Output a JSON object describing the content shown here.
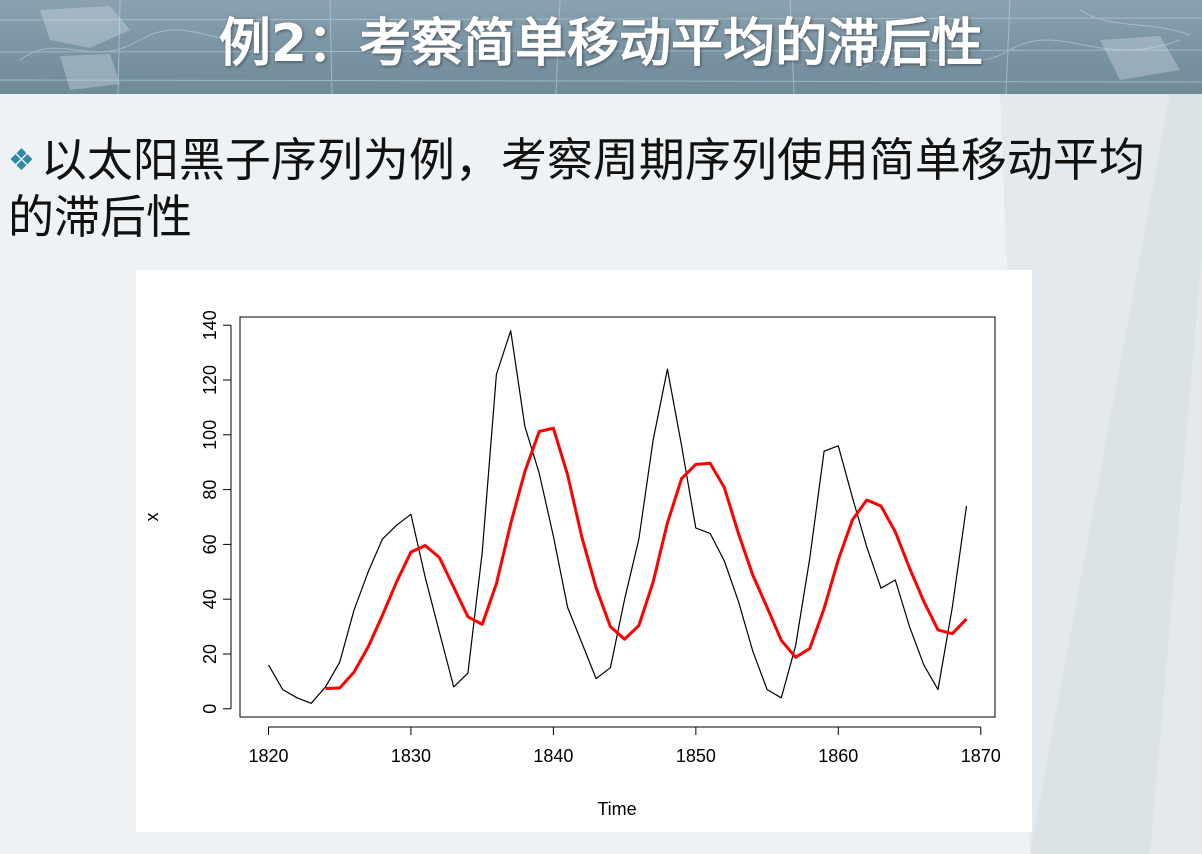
{
  "slide": {
    "title": "例2：考察简单移动平均的滞后性",
    "bullet_icon": "diamond-bullet-icon",
    "bullet_text": "以太阳黑子序列为例，考察周期序列使用简单移动平均的滞后性"
  },
  "colors": {
    "banner": "#7b95a4",
    "bullet_icon": "#2f8aa4",
    "raw_series": "#000000",
    "moving_average": "#ff0000"
  },
  "chart_data": {
    "type": "line",
    "title": "",
    "xlabel": "Time",
    "ylabel": "x",
    "xlim": [
      1818,
      1871
    ],
    "ylim": [
      -3,
      143
    ],
    "xticks": [
      1820,
      1830,
      1840,
      1850,
      1860,
      1870
    ],
    "yticks": [
      0,
      20,
      40,
      60,
      80,
      100,
      120,
      140
    ],
    "grid": false,
    "legend": "none",
    "series": [
      {
        "color": "#000000",
        "points": [
          [
            1820,
            16
          ],
          [
            1821,
            7
          ],
          [
            1822,
            4
          ],
          [
            1823,
            2
          ],
          [
            1824,
            8
          ],
          [
            1825,
            17
          ],
          [
            1826,
            36
          ],
          [
            1827,
            50
          ],
          [
            1828,
            62
          ],
          [
            1829,
            67
          ],
          [
            1830,
            71
          ],
          [
            1831,
            48
          ],
          [
            1832,
            28
          ],
          [
            1833,
            8
          ],
          [
            1834,
            13
          ],
          [
            1835,
            57
          ],
          [
            1836,
            122
          ],
          [
            1837,
            138
          ],
          [
            1838,
            103
          ],
          [
            1839,
            86
          ],
          [
            1840,
            63
          ],
          [
            1841,
            37
          ],
          [
            1842,
            24
          ],
          [
            1843,
            11
          ],
          [
            1844,
            15
          ],
          [
            1845,
            40
          ],
          [
            1846,
            62
          ],
          [
            1847,
            98
          ],
          [
            1848,
            124
          ],
          [
            1849,
            96
          ],
          [
            1850,
            66
          ],
          [
            1851,
            64
          ],
          [
            1852,
            54
          ],
          [
            1853,
            39
          ],
          [
            1854,
            21
          ],
          [
            1855,
            7
          ],
          [
            1856,
            4
          ],
          [
            1857,
            23
          ],
          [
            1858,
            55
          ],
          [
            1859,
            94
          ],
          [
            1860,
            96
          ],
          [
            1861,
            77
          ],
          [
            1862,
            59
          ],
          [
            1863,
            44
          ],
          [
            1864,
            47
          ],
          [
            1865,
            30
          ],
          [
            1866,
            16
          ],
          [
            1867,
            7
          ],
          [
            1868,
            37
          ],
          [
            1869,
            74
          ]
        ]
      },
      {
        "color": "#ff0000",
        "points": [
          [
            1824,
            7.4
          ],
          [
            1825,
            7.6
          ],
          [
            1826,
            13.4
          ],
          [
            1827,
            22.6
          ],
          [
            1828,
            34.2
          ],
          [
            1829,
            46.4
          ],
          [
            1830,
            57.2
          ],
          [
            1831,
            59.6
          ],
          [
            1832,
            55.2
          ],
          [
            1833,
            44.4
          ],
          [
            1834,
            33.6
          ],
          [
            1835,
            30.8
          ],
          [
            1836,
            45.6
          ],
          [
            1837,
            67.6
          ],
          [
            1838,
            86.6
          ],
          [
            1839,
            101.2
          ],
          [
            1840,
            102.4
          ],
          [
            1841,
            85.4
          ],
          [
            1842,
            62.6
          ],
          [
            1843,
            44.2
          ],
          [
            1844,
            30
          ],
          [
            1845,
            25.4
          ],
          [
            1846,
            30.4
          ],
          [
            1847,
            46.2
          ],
          [
            1848,
            67.8
          ],
          [
            1849,
            84
          ],
          [
            1850,
            89.2
          ],
          [
            1851,
            89.6
          ],
          [
            1852,
            80.8
          ],
          [
            1853,
            63.8
          ],
          [
            1854,
            48.8
          ],
          [
            1855,
            37
          ],
          [
            1856,
            25
          ],
          [
            1857,
            18.8
          ],
          [
            1858,
            22
          ],
          [
            1859,
            36.6
          ],
          [
            1860,
            54.4
          ],
          [
            1861,
            69
          ],
          [
            1862,
            76.2
          ],
          [
            1863,
            74
          ],
          [
            1864,
            64.6
          ],
          [
            1865,
            51.4
          ],
          [
            1866,
            39.2
          ],
          [
            1867,
            28.8
          ],
          [
            1868,
            27.4
          ],
          [
            1869,
            32.8
          ]
        ]
      }
    ]
  }
}
